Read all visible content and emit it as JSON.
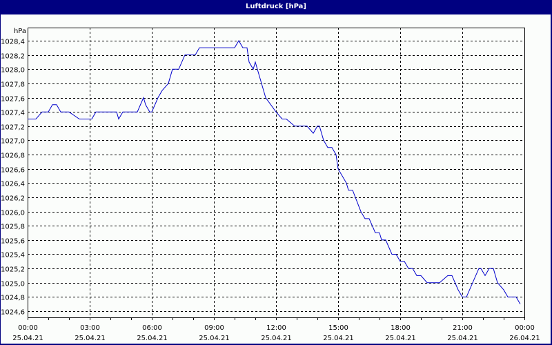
{
  "window": {
    "title": "Luftdruck [hPa]"
  },
  "colors": {
    "frame": "#000080",
    "background": "#fbfdfb",
    "line": "#0000cc",
    "grid": "#000000"
  },
  "chart_data": {
    "type": "line",
    "title": "Luftdruck [hPa]",
    "xlabel": "",
    "ylabel": "hPa",
    "ylim": [
      1024.5,
      1028.5
    ],
    "grid": true,
    "legend": "none",
    "y_ticks": [
      "1028,4",
      "1028,2",
      "1028,0",
      "1027,8",
      "1027,6",
      "1027,4",
      "1027,2",
      "1027,0",
      "1026,8",
      "1026,6",
      "1026,4",
      "1026,2",
      "1026,0",
      "1025,8",
      "1025,6",
      "1025,4",
      "1025,2",
      "1025,0",
      "1024,8",
      "1024,6"
    ],
    "x_ticks": [
      {
        "time": "00:00",
        "date": "25.04.21"
      },
      {
        "time": "03:00",
        "date": "25.04.21"
      },
      {
        "time": "06:00",
        "date": "25.04.21"
      },
      {
        "time": "09:00",
        "date": "25.04.21"
      },
      {
        "time": "12:00",
        "date": "25.04.21"
      },
      {
        "time": "15:00",
        "date": "25.04.21"
      },
      {
        "time": "18:00",
        "date": "25.04.21"
      },
      {
        "time": "21:00",
        "date": "25.04.21"
      },
      {
        "time": "00:00",
        "date": "26.04.21"
      }
    ],
    "series": [
      {
        "name": "Luftdruck",
        "x_hours": [
          0,
          0.4,
          0.7,
          1.0,
          1.2,
          1.4,
          1.6,
          2.0,
          2.5,
          3.0,
          3.1,
          3.3,
          4.0,
          4.3,
          4.4,
          4.6,
          5.0,
          5.3,
          5.6,
          5.7,
          5.9,
          6.0,
          6.3,
          6.5,
          6.8,
          7.0,
          7.3,
          7.6,
          8.1,
          8.3,
          8.6,
          9.0,
          9.5,
          10.0,
          10.2,
          10.4,
          10.6,
          10.7,
          10.9,
          11.0,
          11.1,
          11.3,
          11.5,
          12.0,
          12.3,
          12.5,
          12.9,
          13.0,
          13.5,
          13.8,
          14.0,
          14.1,
          14.3,
          14.5,
          14.7,
          14.9,
          15.0,
          15.4,
          15.5,
          15.7,
          16.1,
          16.3,
          16.5,
          16.8,
          17.0,
          17.1,
          17.3,
          17.6,
          17.8,
          18.0,
          18.2,
          18.4,
          18.6,
          18.8,
          19.0,
          19.3,
          19.5,
          19.9,
          20.3,
          20.5,
          20.8,
          21.0,
          21.2,
          21.5,
          21.8,
          21.9,
          22.1,
          22.3,
          22.5,
          22.7,
          23.0,
          23.2,
          23.6,
          23.8
        ],
        "values": [
          1027.3,
          1027.3,
          1027.4,
          1027.4,
          1027.5,
          1027.5,
          1027.4,
          1027.4,
          1027.3,
          1027.3,
          1027.3,
          1027.4,
          1027.4,
          1027.4,
          1027.3,
          1027.4,
          1027.4,
          1027.4,
          1027.6,
          1027.5,
          1027.4,
          1027.4,
          1027.6,
          1027.7,
          1027.8,
          1028.0,
          1028.0,
          1028.2,
          1028.2,
          1028.3,
          1028.3,
          1028.3,
          1028.3,
          1028.3,
          1028.4,
          1028.3,
          1028.3,
          1028.1,
          1028.0,
          1028.1,
          1028.0,
          1027.8,
          1027.6,
          1027.4,
          1027.3,
          1027.3,
          1027.2,
          1027.2,
          1027.2,
          1027.1,
          1027.2,
          1027.2,
          1027.0,
          1026.9,
          1026.9,
          1026.8,
          1026.6,
          1026.4,
          1026.3,
          1026.3,
          1026.0,
          1025.9,
          1025.9,
          1025.7,
          1025.7,
          1025.6,
          1025.6,
          1025.4,
          1025.4,
          1025.3,
          1025.3,
          1025.2,
          1025.2,
          1025.1,
          1025.1,
          1025.0,
          1025.0,
          1025.0,
          1025.1,
          1025.1,
          1024.9,
          1024.8,
          1024.8,
          1025.0,
          1025.2,
          1025.2,
          1025.1,
          1025.2,
          1025.2,
          1025.0,
          1024.9,
          1024.8,
          1024.8,
          1024.7
        ]
      }
    ]
  }
}
